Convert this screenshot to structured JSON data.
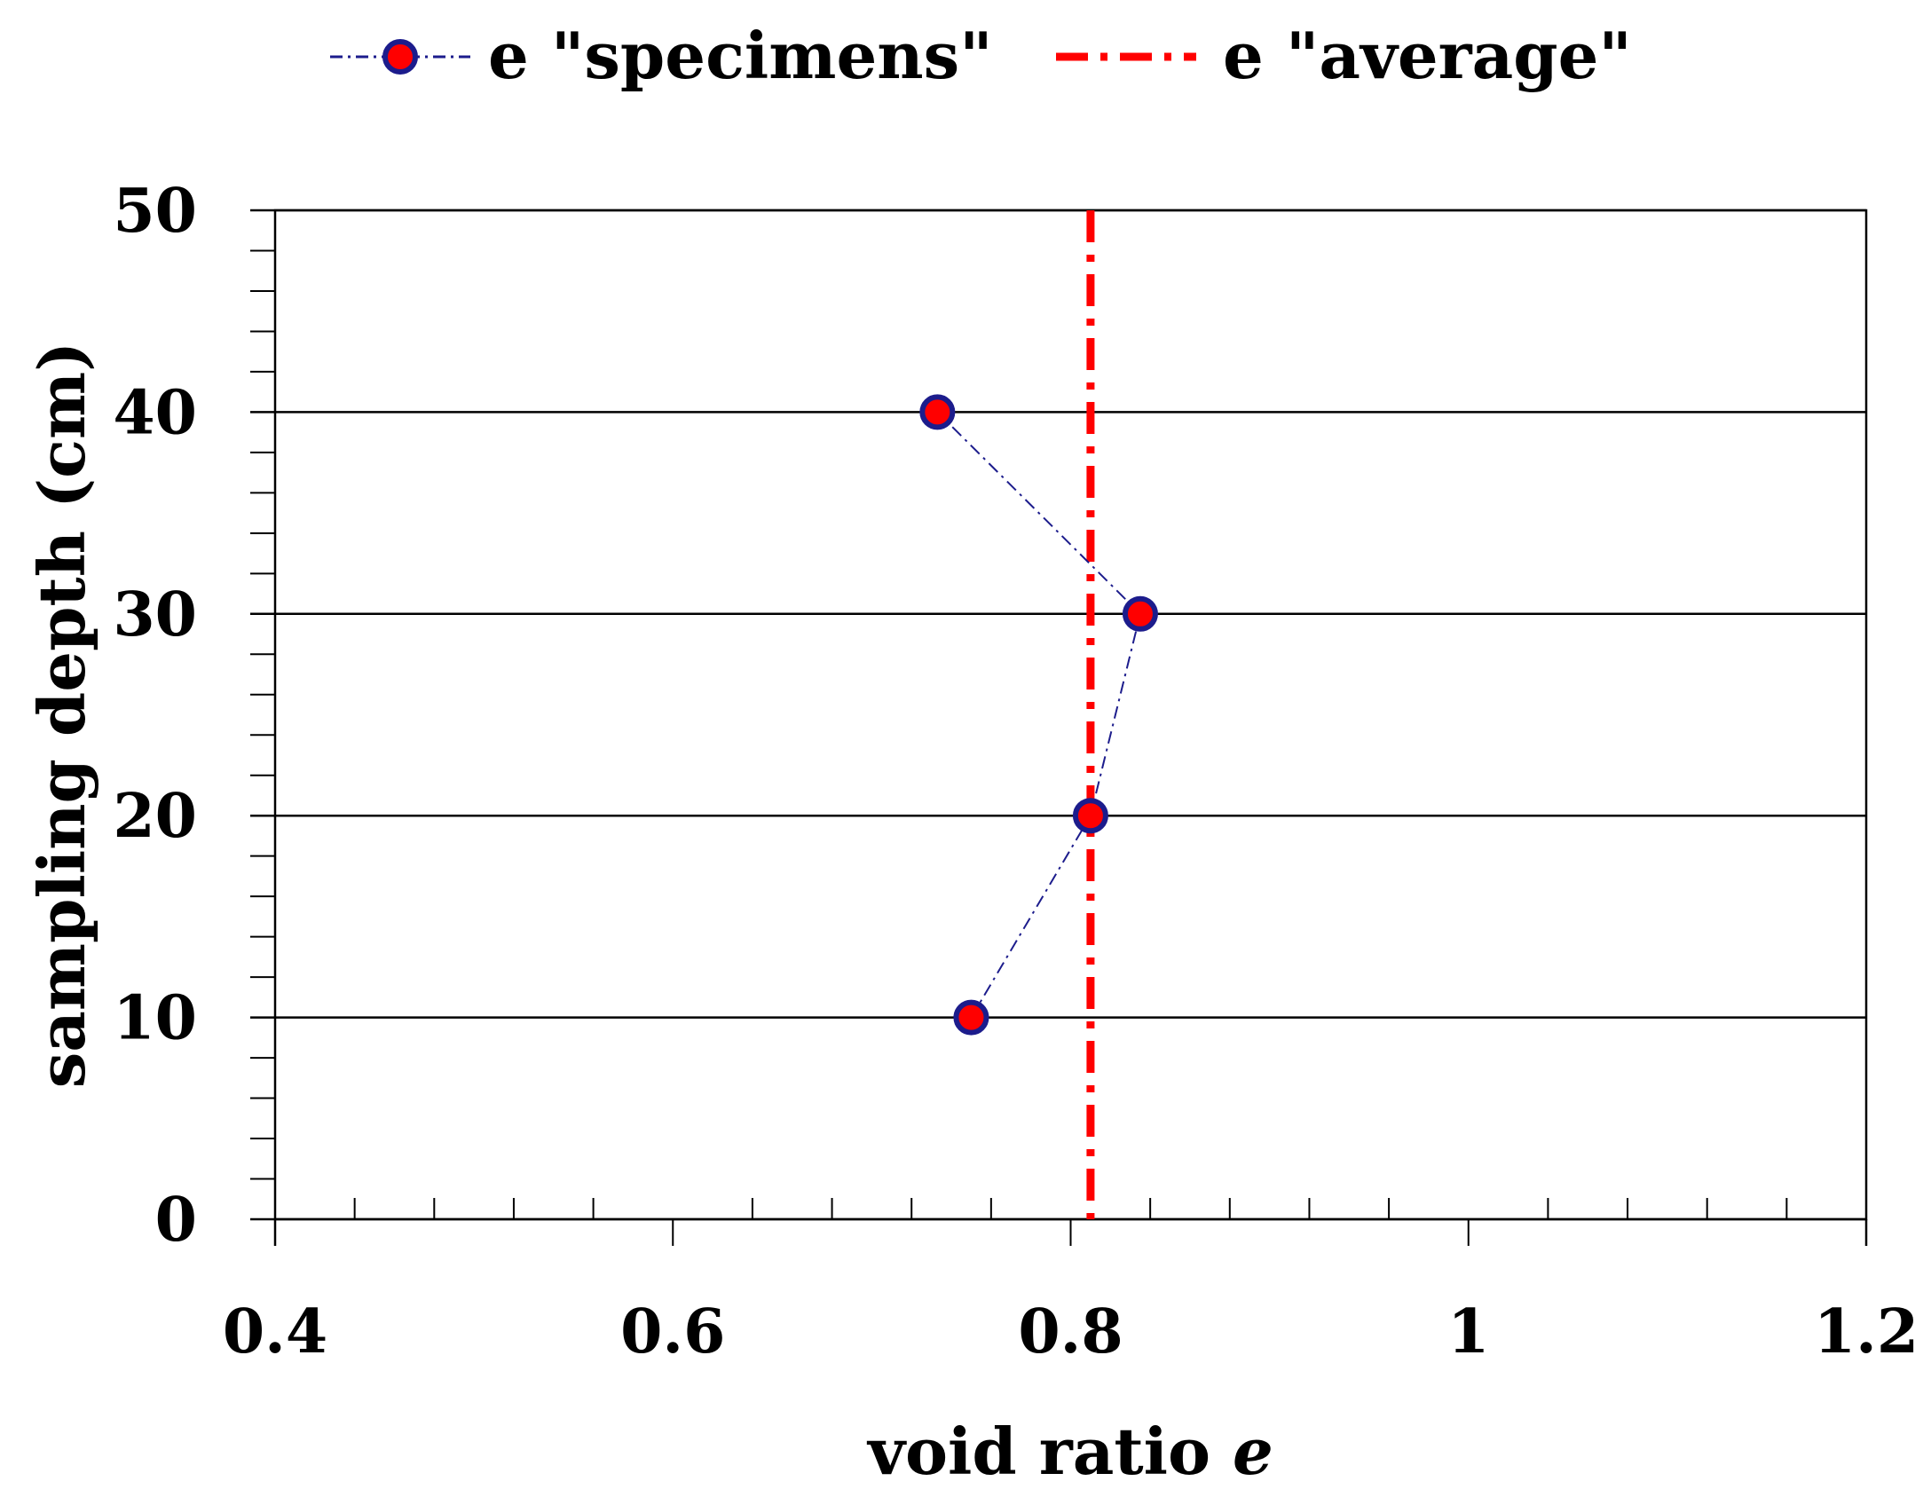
{
  "chart_data": {
    "type": "scatter",
    "title": "",
    "xlabel": "void ratio ",
    "xlabel_italic": "e",
    "ylabel": "sampling depth (cm)",
    "xlim": [
      0.4,
      1.2
    ],
    "ylim": [
      0,
      50
    ],
    "x_ticks": [
      "0.4",
      "0.6",
      "0.8",
      "1",
      "1.2"
    ],
    "x_tick_values": [
      0.4,
      0.6,
      0.8,
      1.0,
      1.2
    ],
    "x_minor_step": 0.04,
    "y_ticks": [
      "0",
      "10",
      "20",
      "30",
      "40",
      "50"
    ],
    "y_tick_values": [
      0,
      10,
      20,
      30,
      40,
      50
    ],
    "y_minor_step": 2,
    "grid": "horizontal",
    "legend_position": "top",
    "series": [
      {
        "name": "e \"specimens\"",
        "style": "dash-dot line with circle markers",
        "line_color": "#1c1c8c",
        "marker_fill": "#ff0000",
        "marker_edge": "#1c1c8c",
        "x": [
          0.75,
          0.81,
          0.835,
          0.733
        ],
        "y": [
          10,
          20,
          30,
          40
        ]
      },
      {
        "name": "e \"average\"",
        "style": "vertical dash-dot line",
        "line_color": "#ff0000",
        "x_value": 0.81
      }
    ]
  }
}
